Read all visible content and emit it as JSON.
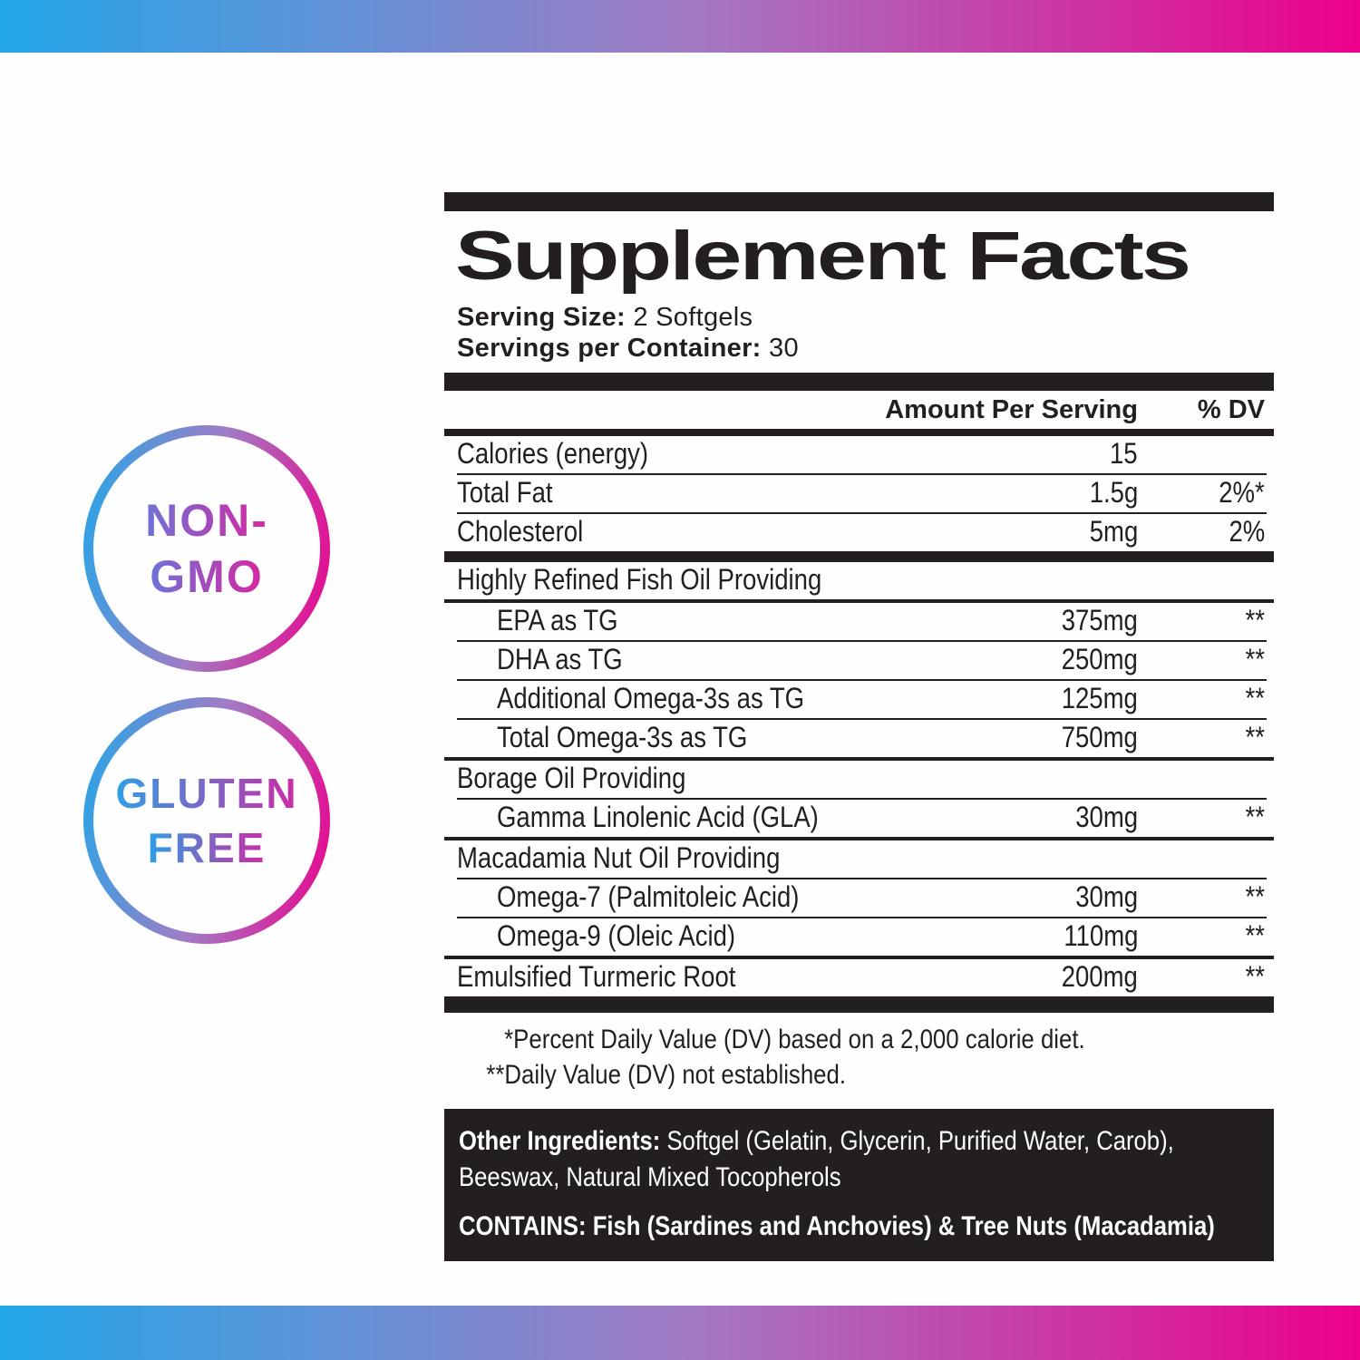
{
  "colors": {
    "gradient_left": "#22A7E8",
    "gradient_mid": "#A17CC5",
    "gradient_right": "#EC008C",
    "ink": "#231F20"
  },
  "badges": [
    {
      "line1": "NON-",
      "line2": "GMO",
      "text_from": "#6E72D8",
      "text_to": "#D8269F"
    },
    {
      "line1": "GLUTEN",
      "line2": "FREE",
      "text_from": "#2E9FE4",
      "text_to": "#CC2BA6"
    }
  ],
  "panel": {
    "title": "Supplement Facts",
    "serving_size_label": "Serving Size:",
    "serving_size_value": "2 Softgels",
    "servings_per_container_label": "Servings per Container:",
    "servings_per_container_value": "30",
    "columns": {
      "amount": "Amount Per Serving",
      "dv": "% DV"
    },
    "rows": [
      {
        "name": "Calories (energy)",
        "amount": "15",
        "dv": "",
        "sep": "thin"
      },
      {
        "name": "Total Fat",
        "amount": "1.5g",
        "dv": "2%*",
        "sep": "thin"
      },
      {
        "name": "Cholesterol",
        "amount": "5mg",
        "dv": "2%",
        "sep": "barsm"
      },
      {
        "name": "Highly Refined Fish Oil Providing",
        "amount": "",
        "dv": "",
        "section": true,
        "sep": "med"
      },
      {
        "name": "EPA as TG",
        "amount": "375mg",
        "dv": "**",
        "indent": true,
        "sep": "thin"
      },
      {
        "name": "DHA as TG",
        "amount": "250mg",
        "dv": "**",
        "indent": true,
        "sep": "thin"
      },
      {
        "name": "Additional Omega-3s as TG",
        "amount": "125mg",
        "dv": "**",
        "indent": true,
        "sep": "thin"
      },
      {
        "name": "Total Omega-3s as TG",
        "amount": "750mg",
        "dv": "**",
        "indent": true,
        "sep": "med"
      },
      {
        "name": "Borage Oil Providing",
        "amount": "",
        "dv": "",
        "section": true,
        "sep": "thin"
      },
      {
        "name": "Gamma Linolenic Acid (GLA)",
        "amount": "30mg",
        "dv": "**",
        "indent": true,
        "sep": "med"
      },
      {
        "name": "Macadamia Nut Oil Providing",
        "amount": "",
        "dv": "",
        "section": true,
        "sep": "thin"
      },
      {
        "name": "Omega-7 (Palmitoleic Acid)",
        "amount": "30mg",
        "dv": "**",
        "indent": true,
        "sep": "thin"
      },
      {
        "name": "Omega-9 (Oleic Acid)",
        "amount": "110mg",
        "dv": "**",
        "indent": true,
        "sep": "med"
      },
      {
        "name": "Emulsified Turmeric Root",
        "amount": "200mg",
        "dv": "**",
        "sep": null
      }
    ],
    "footnotes": [
      "*Percent Daily Value (DV) based on a 2,000 calorie diet.",
      "**Daily Value (DV) not established."
    ],
    "other_ingredients_label": "Other Ingredients:",
    "other_ingredients_text": " Softgel (Gelatin, Glycerin, Purified Water, Carob), Beeswax, Natural Mixed Tocopherols",
    "contains_text": "CONTAINS: Fish (Sardines and Anchovies) & Tree Nuts (Macadamia)"
  }
}
